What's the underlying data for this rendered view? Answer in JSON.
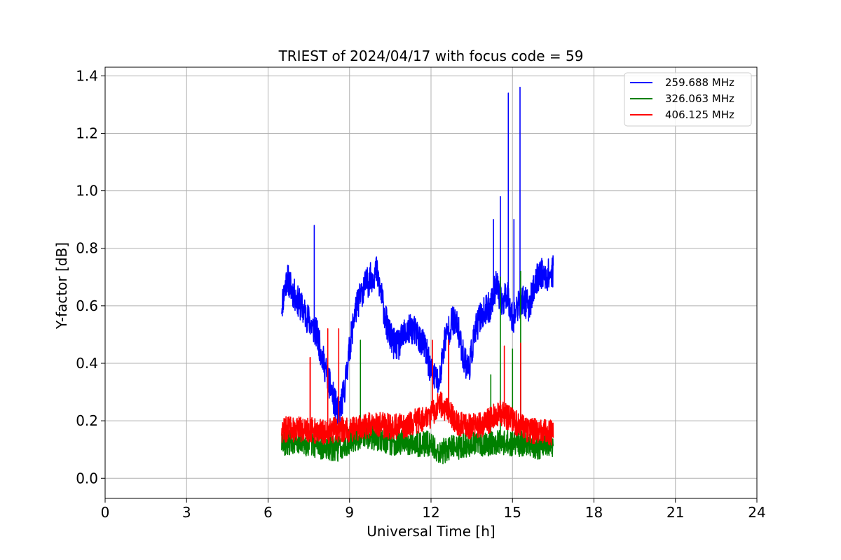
{
  "chart_data": {
    "type": "line",
    "title": "TRIEST of 2024/04/17 with focus code = 59",
    "xlabel": "Universal Time [h]",
    "ylabel": "Y-factor [dB]",
    "xlim": [
      0,
      24
    ],
    "ylim": [
      -0.07,
      1.43
    ],
    "xticks": [
      0,
      3,
      6,
      9,
      12,
      15,
      18,
      21,
      24
    ],
    "xtick_labels": [
      "0",
      "3",
      "6",
      "9",
      "12",
      "15",
      "18",
      "21",
      "24"
    ],
    "yticks": [
      0.0,
      0.2,
      0.4,
      0.6,
      0.8,
      1.0,
      1.2,
      1.4
    ],
    "ytick_labels": [
      "0.0",
      "0.2",
      "0.4",
      "0.6",
      "0.8",
      "1.0",
      "1.2",
      "1.4"
    ],
    "grid": true,
    "legend_position": "top-right",
    "series": [
      {
        "name": "259.688 MHz",
        "color": "#0000ff",
        "noise": 0.055,
        "x": [
          6.5,
          6.7,
          6.9,
          7.2,
          7.5,
          7.8,
          8.0,
          8.2,
          8.4,
          8.6,
          8.8,
          9.0,
          9.2,
          9.5,
          9.8,
          10.0,
          10.2,
          10.4,
          10.6,
          10.8,
          11.0,
          11.3,
          11.5,
          11.8,
          12.0,
          12.3,
          12.5,
          12.8,
          13.0,
          13.2,
          13.4,
          13.6,
          13.8,
          14.0,
          14.2,
          14.4,
          14.6,
          14.8,
          15.0,
          15.2,
          15.4,
          15.6,
          15.8,
          16.0,
          16.2,
          16.5
        ],
        "y": [
          0.6,
          0.7,
          0.65,
          0.6,
          0.55,
          0.5,
          0.42,
          0.35,
          0.28,
          0.22,
          0.3,
          0.45,
          0.58,
          0.66,
          0.7,
          0.72,
          0.62,
          0.52,
          0.47,
          0.46,
          0.5,
          0.52,
          0.5,
          0.45,
          0.37,
          0.33,
          0.48,
          0.55,
          0.52,
          0.42,
          0.38,
          0.5,
          0.56,
          0.58,
          0.6,
          0.68,
          0.6,
          0.65,
          0.55,
          0.6,
          0.62,
          0.6,
          0.66,
          0.72,
          0.7,
          0.72
        ],
        "spikes": [
          [
            7.7,
            0.88
          ],
          [
            14.3,
            0.9
          ],
          [
            14.55,
            0.98
          ],
          [
            14.85,
            1.34
          ],
          [
            15.28,
            1.36
          ],
          [
            15.05,
            0.9
          ]
        ]
      },
      {
        "name": "326.063 MHz",
        "color": "#008000",
        "noise": 0.045,
        "x": [
          6.5,
          7.0,
          7.5,
          8.0,
          8.5,
          9.0,
          9.5,
          10.0,
          10.5,
          11.0,
          11.5,
          12.0,
          12.3,
          12.6,
          13.0,
          13.5,
          14.0,
          14.5,
          15.0,
          15.5,
          16.0,
          16.5
        ],
        "y": [
          0.12,
          0.13,
          0.12,
          0.11,
          0.1,
          0.13,
          0.15,
          0.14,
          0.12,
          0.13,
          0.12,
          0.12,
          0.09,
          0.1,
          0.11,
          0.12,
          0.12,
          0.13,
          0.12,
          0.12,
          0.11,
          0.12
        ],
        "spikes": [
          [
            9.25,
            0.6
          ],
          [
            9.4,
            0.48
          ],
          [
            14.55,
            0.7
          ],
          [
            15.0,
            0.45
          ],
          [
            15.3,
            0.72
          ],
          [
            14.2,
            0.36
          ]
        ]
      },
      {
        "name": "406.125 MHz",
        "color": "#ff0000",
        "noise": 0.045,
        "x": [
          6.5,
          7.0,
          7.5,
          8.0,
          8.5,
          9.0,
          9.5,
          10.0,
          10.5,
          11.0,
          11.5,
          12.0,
          12.3,
          12.6,
          13.0,
          13.5,
          14.0,
          14.5,
          15.0,
          15.5,
          16.0,
          16.5
        ],
        "y": [
          0.17,
          0.17,
          0.17,
          0.16,
          0.17,
          0.17,
          0.18,
          0.19,
          0.18,
          0.18,
          0.2,
          0.22,
          0.26,
          0.24,
          0.19,
          0.18,
          0.19,
          0.23,
          0.2,
          0.17,
          0.16,
          0.16
        ],
        "spikes": [
          [
            8.2,
            0.52
          ],
          [
            8.6,
            0.52
          ],
          [
            12.05,
            0.48
          ],
          [
            12.65,
            0.48
          ],
          [
            14.7,
            0.46
          ],
          [
            15.3,
            0.47
          ],
          [
            7.55,
            0.42
          ]
        ]
      }
    ]
  }
}
